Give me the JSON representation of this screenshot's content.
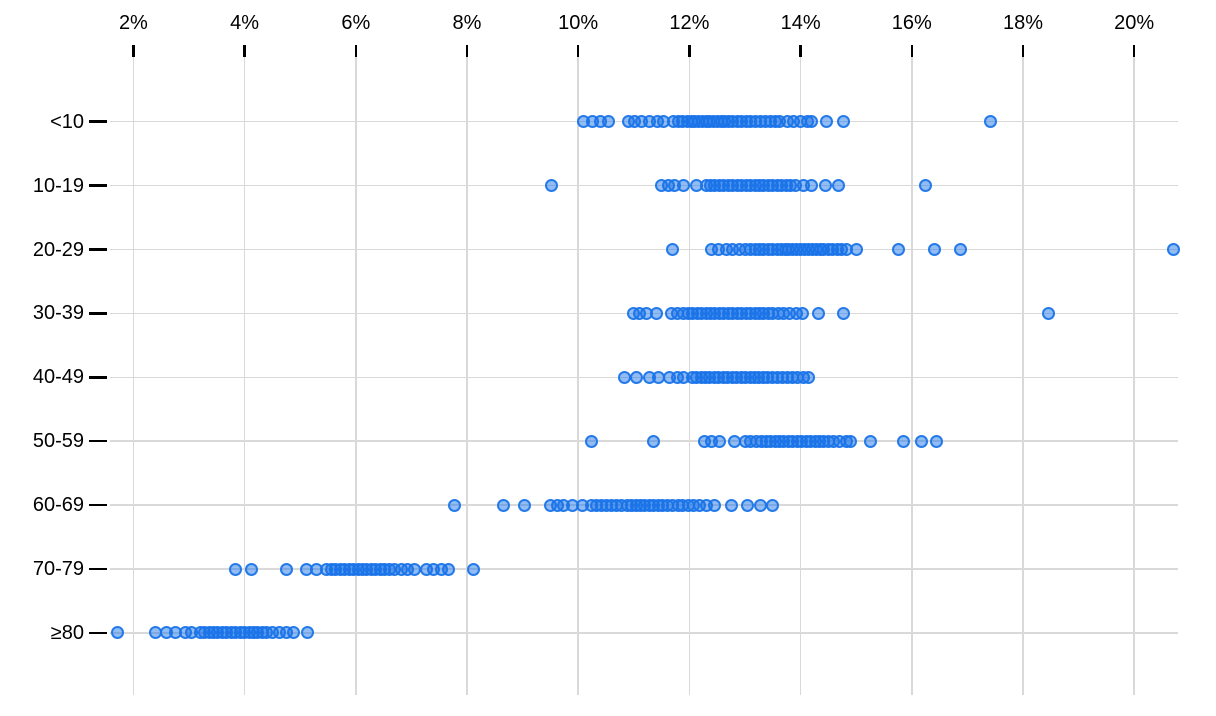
{
  "chart_data": {
    "type": "scatter",
    "variant": "horizontal-strip-plot",
    "title": "",
    "xlabel": "",
    "ylabel": "",
    "grid": "both",
    "legend": null,
    "x_axis": {
      "position": "top",
      "tick_labels": [
        "2%",
        "4%",
        "6%",
        "8%",
        "10%",
        "12%",
        "14%",
        "16%",
        "18%",
        "20%"
      ],
      "tick_values": [
        2,
        4,
        6,
        8,
        10,
        12,
        14,
        16,
        18,
        20
      ],
      "xlim": [
        1.55,
        20.9
      ],
      "unit": "percent"
    },
    "y_categories": [
      "<10",
      "10-19",
      "20-29",
      "30-39",
      "40-49",
      "50-59",
      "60-69",
      "70-79",
      "≥80"
    ],
    "series": [
      {
        "category": "<10",
        "values": [
          10.1,
          10.25,
          10.4,
          10.55,
          10.9,
          11.02,
          11.14,
          11.28,
          11.42,
          11.53,
          11.72,
          11.8,
          11.88,
          11.96,
          12.03,
          12.1,
          12.17,
          12.24,
          12.3,
          12.37,
          12.44,
          12.5,
          12.57,
          12.64,
          12.71,
          12.78,
          12.86,
          12.94,
          13.02,
          13.1,
          13.18,
          13.27,
          13.36,
          13.45,
          13.55,
          13.62,
          13.76,
          13.88,
          14.0,
          14.12,
          14.2,
          14.47,
          14.77,
          17.41
        ]
      },
      {
        "category": "10-19",
        "values": [
          9.52,
          11.5,
          11.62,
          11.74,
          11.9,
          12.13,
          12.3,
          12.38,
          12.46,
          12.54,
          12.62,
          12.7,
          12.78,
          12.86,
          12.94,
          13.02,
          13.1,
          13.18,
          13.26,
          13.34,
          13.42,
          13.5,
          13.58,
          13.66,
          13.74,
          13.81,
          13.9,
          14.05,
          14.19,
          14.45,
          14.68,
          16.25
        ]
      },
      {
        "category": "20-29",
        "values": [
          11.7,
          12.4,
          12.52,
          12.67,
          12.78,
          12.9,
          13.0,
          13.1,
          13.18,
          13.26,
          13.34,
          13.42,
          13.5,
          13.58,
          13.65,
          13.72,
          13.79,
          13.86,
          13.93,
          14.0,
          14.07,
          14.14,
          14.21,
          14.28,
          14.35,
          14.42,
          14.5,
          14.58,
          14.66,
          14.74,
          14.82,
          15.0,
          15.76,
          16.4,
          16.87,
          20.7
        ]
      },
      {
        "category": "30-39",
        "values": [
          10.99,
          11.1,
          11.22,
          11.41,
          11.67,
          11.78,
          11.9,
          11.98,
          12.06,
          12.14,
          12.22,
          12.3,
          12.38,
          12.46,
          12.54,
          12.62,
          12.7,
          12.78,
          12.86,
          12.94,
          13.02,
          13.1,
          13.18,
          13.26,
          13.34,
          13.42,
          13.5,
          13.6,
          13.7,
          13.8,
          13.92,
          14.03,
          14.32,
          14.77,
          18.45
        ]
      },
      {
        "category": "40-49",
        "values": [
          10.84,
          11.05,
          11.29,
          11.44,
          11.65,
          11.78,
          11.9,
          12.05,
          12.13,
          12.21,
          12.29,
          12.37,
          12.45,
          12.53,
          12.61,
          12.69,
          12.77,
          12.85,
          12.93,
          13.01,
          13.09,
          13.17,
          13.25,
          13.33,
          13.41,
          13.5,
          13.58,
          13.67,
          13.76,
          13.85,
          13.95,
          14.05,
          14.15
        ]
      },
      {
        "category": "50-59",
        "values": [
          10.24,
          11.35,
          12.28,
          12.4,
          12.55,
          12.82,
          13.0,
          13.1,
          13.2,
          13.3,
          13.38,
          13.46,
          13.54,
          13.62,
          13.7,
          13.78,
          13.86,
          13.94,
          14.02,
          14.1,
          14.18,
          14.26,
          14.34,
          14.42,
          14.5,
          14.6,
          14.7,
          14.82,
          14.89,
          15.25,
          15.85,
          16.18,
          16.45
        ]
      },
      {
        "category": "60-69",
        "values": [
          7.78,
          8.65,
          9.04,
          9.5,
          9.62,
          9.74,
          9.9,
          10.08,
          10.24,
          10.33,
          10.42,
          10.51,
          10.6,
          10.69,
          10.78,
          10.88,
          10.96,
          11.04,
          11.12,
          11.2,
          11.28,
          11.36,
          11.44,
          11.52,
          11.6,
          11.7,
          11.8,
          11.88,
          11.98,
          12.08,
          12.18,
          12.3,
          12.45,
          12.75,
          13.05,
          13.27,
          13.5
        ]
      },
      {
        "category": "70-79",
        "values": [
          3.83,
          4.12,
          4.76,
          5.12,
          5.3,
          5.48,
          5.56,
          5.64,
          5.72,
          5.8,
          5.88,
          5.96,
          6.04,
          6.12,
          6.2,
          6.28,
          6.36,
          6.44,
          6.52,
          6.6,
          6.7,
          6.82,
          6.93,
          7.05,
          7.27,
          7.4,
          7.55,
          7.67,
          8.11
        ]
      },
      {
        "category": "≥80",
        "values": [
          1.71,
          2.39,
          2.6,
          2.75,
          2.93,
          3.05,
          3.2,
          3.28,
          3.36,
          3.44,
          3.52,
          3.6,
          3.68,
          3.76,
          3.84,
          3.92,
          4.0,
          4.08,
          4.16,
          4.24,
          4.32,
          4.4,
          4.5,
          4.62,
          4.75,
          4.88,
          5.14
        ]
      }
    ],
    "colors": {
      "point_fill": "#1a73e8",
      "point_fill_opacity": 0.48,
      "point_stroke": "#1a73e8",
      "point_stroke_opacity": 0.9,
      "gridline": "#d9d9d9",
      "axis_tick": "#000000",
      "text": "#000000",
      "background": "#ffffff"
    }
  }
}
